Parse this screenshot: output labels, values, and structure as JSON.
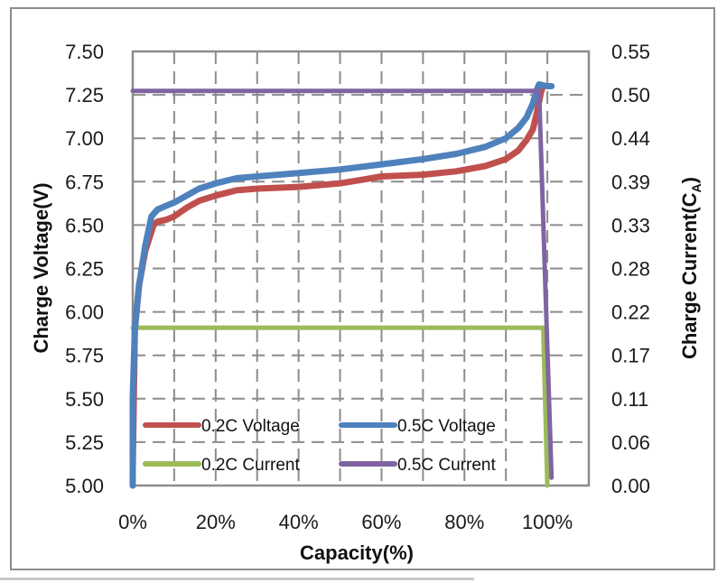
{
  "chart_data": {
    "type": "line",
    "title": "",
    "xlabel": "Capacity(%)",
    "ylabel": "Charge Voltage(V)",
    "y2label_main": "Charge Current(C",
    "y2label_sub": "A",
    "y2label_end": ")",
    "xlim": [
      0,
      110
    ],
    "ylim": [
      5.0,
      7.5
    ],
    "y2lim": [
      0.0,
      0.55
    ],
    "grid": true,
    "legend_position": "bottom-left-inside",
    "x_ticks": [
      0,
      20,
      40,
      60,
      80,
      100
    ],
    "x_tick_labels": [
      "0%",
      "20%",
      "40%",
      "60%",
      "80%",
      "100%"
    ],
    "y_ticks": [
      5.0,
      5.25,
      5.5,
      5.75,
      6.0,
      6.25,
      6.5,
      6.75,
      7.0,
      7.25,
      7.5
    ],
    "y_tick_labels": [
      "5.00",
      "5.25",
      "5.50",
      "5.75",
      "6.00",
      "6.25",
      "6.50",
      "6.75",
      "7.00",
      "7.25",
      "7.50"
    ],
    "y2_tick_labels": [
      "0.00",
      "0.06",
      "0.11",
      "0.17",
      "0.22",
      "0.28",
      "0.33",
      "0.39",
      "0.44",
      "0.50",
      "0.55"
    ],
    "series": [
      {
        "name": "0.2C Voltage",
        "axis": "left",
        "color": "#c0504d",
        "points": [
          [
            0,
            5.0
          ],
          [
            0,
            5.1
          ],
          [
            0.5,
            5.9
          ],
          [
            1.5,
            6.15
          ],
          [
            3,
            6.35
          ],
          [
            5,
            6.5
          ],
          [
            6,
            6.52
          ],
          [
            8,
            6.53
          ],
          [
            10,
            6.55
          ],
          [
            13,
            6.6
          ],
          [
            16,
            6.64
          ],
          [
            20,
            6.67
          ],
          [
            25,
            6.7
          ],
          [
            30,
            6.71
          ],
          [
            40,
            6.72
          ],
          [
            50,
            6.74
          ],
          [
            55,
            6.76
          ],
          [
            60,
            6.78
          ],
          [
            70,
            6.79
          ],
          [
            78,
            6.81
          ],
          [
            85,
            6.84
          ],
          [
            90,
            6.88
          ],
          [
            93,
            6.93
          ],
          [
            95,
            6.99
          ],
          [
            96.5,
            7.05
          ],
          [
            97.5,
            7.15
          ],
          [
            98.5,
            7.27
          ],
          [
            99,
            7.3
          ]
        ]
      },
      {
        "name": "0.5C Voltage",
        "axis": "left",
        "color": "#4f81bd",
        "points": [
          [
            0,
            5.0
          ],
          [
            0,
            5.5
          ],
          [
            0.5,
            5.9
          ],
          [
            1.5,
            6.15
          ],
          [
            3,
            6.38
          ],
          [
            4.5,
            6.55
          ],
          [
            6,
            6.59
          ],
          [
            8,
            6.61
          ],
          [
            10,
            6.63
          ],
          [
            13,
            6.67
          ],
          [
            16,
            6.71
          ],
          [
            20,
            6.74
          ],
          [
            25,
            6.77
          ],
          [
            30,
            6.78
          ],
          [
            40,
            6.8
          ],
          [
            50,
            6.82
          ],
          [
            60,
            6.85
          ],
          [
            70,
            6.88
          ],
          [
            78,
            6.91
          ],
          [
            85,
            6.95
          ],
          [
            90,
            7.0
          ],
          [
            93,
            7.06
          ],
          [
            95,
            7.12
          ],
          [
            96.5,
            7.2
          ],
          [
            97.5,
            7.28
          ],
          [
            98,
            7.31
          ],
          [
            100,
            7.3
          ],
          [
            101,
            7.3
          ]
        ]
      },
      {
        "name": "0.2C Current",
        "axis": "right",
        "color": "#9bbb59",
        "points": [
          [
            0,
            0.2
          ],
          [
            99,
            0.2
          ],
          [
            100,
            0.0
          ]
        ]
      },
      {
        "name": "0.5C Current",
        "axis": "right",
        "color": "#8064a2",
        "points": [
          [
            0,
            0.5
          ],
          [
            98,
            0.5
          ],
          [
            101,
            0.01
          ]
        ]
      }
    ]
  }
}
